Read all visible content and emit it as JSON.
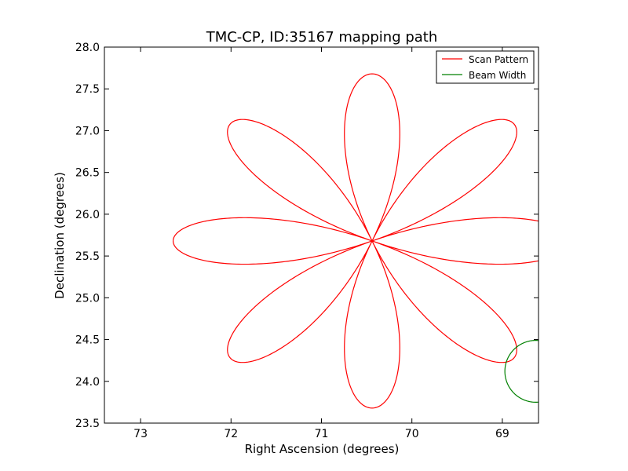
{
  "chart_data": {
    "type": "line",
    "title": "TMC-CP, ID:35167 mapping path",
    "xlabel": "Right Ascension (degrees)",
    "ylabel": "Declination (degrees)",
    "xlim": [
      73.4,
      68.6
    ],
    "ylim": [
      23.5,
      28.0
    ],
    "x_axis_inverted": true,
    "grid": false,
    "legend_position": "top-right",
    "xticks": [
      73,
      72,
      71,
      70,
      69
    ],
    "xtick_labels": [
      "73",
      "72",
      "71",
      "70",
      "69"
    ],
    "yticks": [
      23.5,
      24.0,
      24.5,
      25.0,
      25.5,
      26.0,
      26.5,
      27.0,
      27.5,
      28.0
    ],
    "ytick_labels": [
      "23.5",
      "24.0",
      "24.5",
      "25.0",
      "25.5",
      "26.0",
      "26.5",
      "27.0",
      "27.5",
      "28.0"
    ],
    "series": [
      {
        "name": "Scan Pattern",
        "color": "#ff0000",
        "shape": "rose",
        "center": [
          70.44,
          25.68
        ],
        "petals": 8,
        "radius_ra": 2.2,
        "radius_dec": 2.0
      },
      {
        "name": "Beam Width",
        "color": "#008000",
        "shape": "circle",
        "center": [
          68.63,
          24.12
        ],
        "radius_dec": 0.37
      }
    ]
  }
}
